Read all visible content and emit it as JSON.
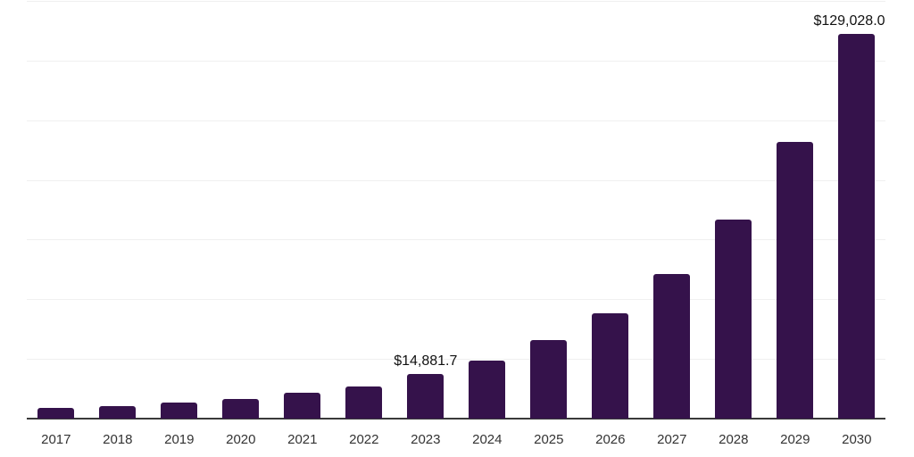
{
  "chart_data": {
    "type": "bar",
    "title": "",
    "xlabel": "",
    "ylabel": "",
    "categories": [
      "2017",
      "2018",
      "2019",
      "2020",
      "2021",
      "2022",
      "2023",
      "2024",
      "2025",
      "2026",
      "2027",
      "2028",
      "2029",
      "2030"
    ],
    "values": [
      3700,
      4280,
      5260,
      6460,
      8760,
      10760,
      14881.7,
      19430,
      26400,
      35160,
      48430,
      66850,
      92770,
      129028.0
    ],
    "data_labels": [
      {
        "category": "2023",
        "text": "$14,881.7"
      },
      {
        "category": "2030",
        "text": "$129,028.0"
      }
    ],
    "ylim": [
      0,
      140000
    ],
    "gridline_values": [
      20000,
      40000,
      60000,
      80000,
      100000,
      120000,
      140000
    ],
    "grid": "horizontal",
    "legend": "none",
    "colors": {
      "bar": "#35124B",
      "axis_line": "#3A3A3A",
      "gridline": "#F0F0F0",
      "tick_label": "#333333",
      "data_label": "#111111",
      "background": "#FFFFFF"
    }
  }
}
